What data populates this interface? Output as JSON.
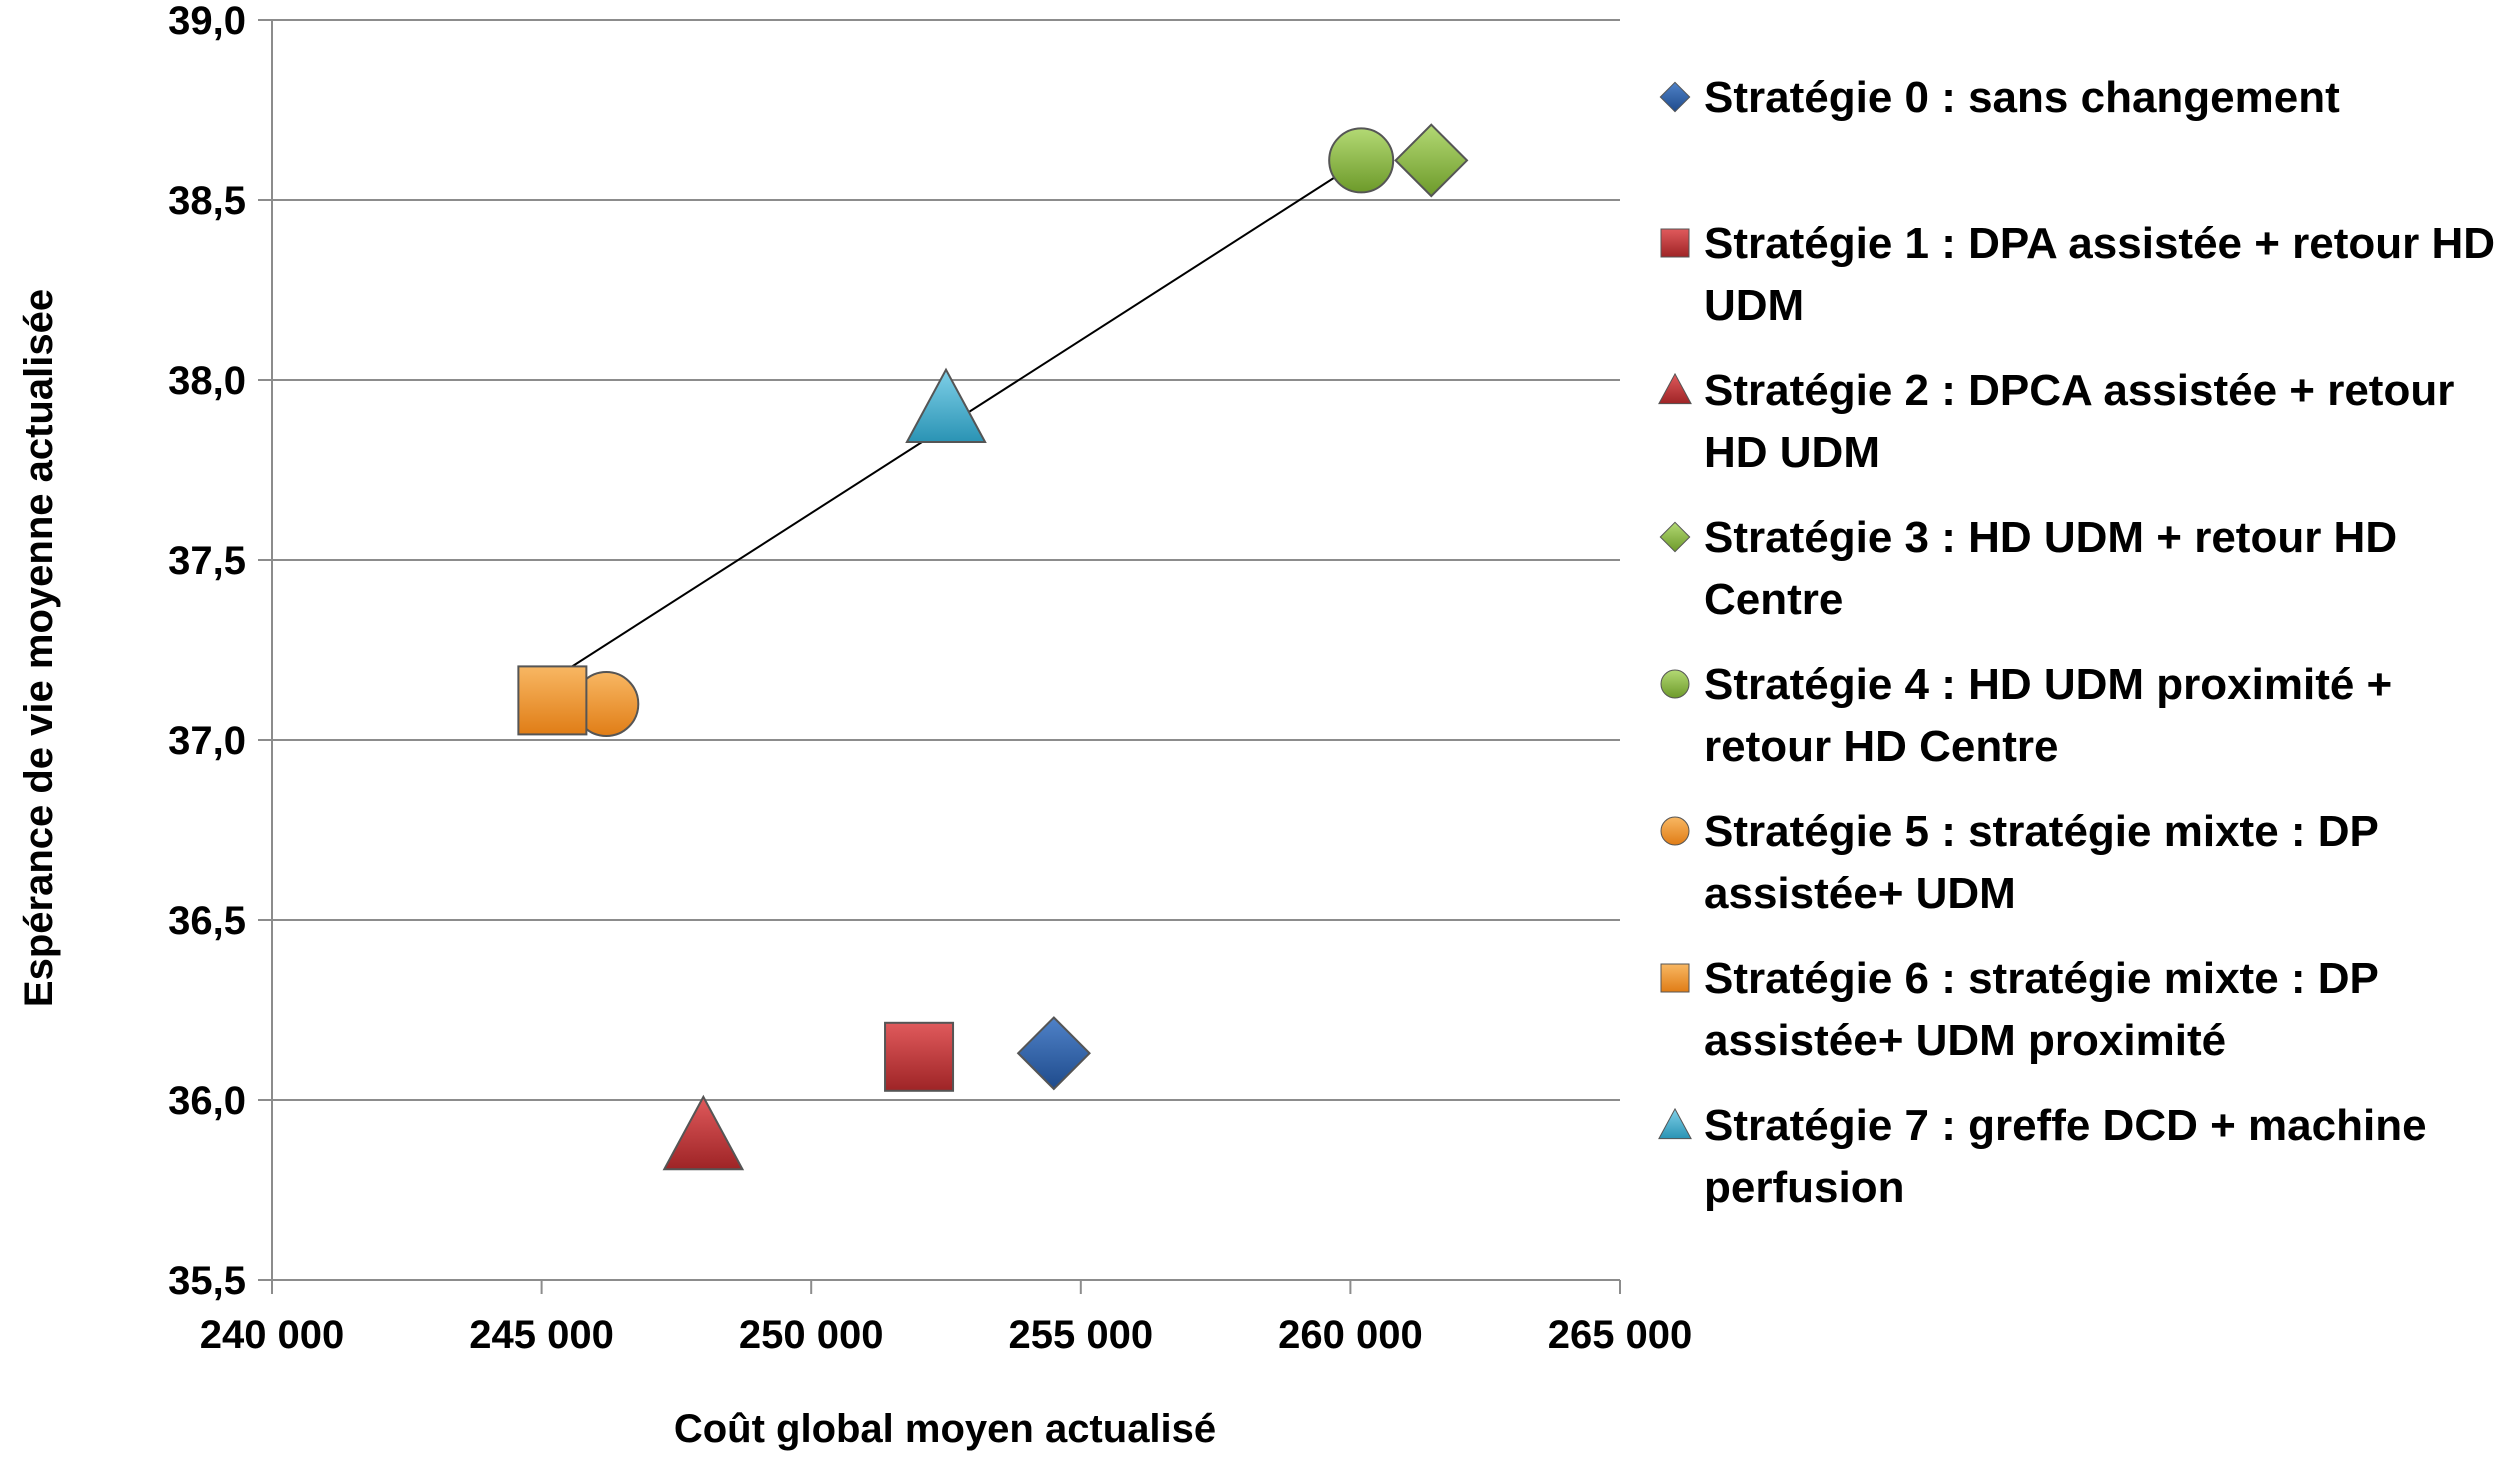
{
  "chart_data": {
    "type": "scatter",
    "title": "",
    "xlabel": "Coût global moyen actualisé",
    "ylabel": "Espérance de vie moyenne actualisée",
    "xlim": [
      240000,
      265000
    ],
    "ylim": [
      35.5,
      39.0
    ],
    "x_ticks": [
      240000,
      245000,
      250000,
      255000,
      260000,
      265000
    ],
    "x_tick_labels": [
      "240 000",
      "245 000",
      "250 000",
      "255 000",
      "260 000",
      "265 000"
    ],
    "y_ticks": [
      35.5,
      36.0,
      36.5,
      37.0,
      37.5,
      38.0,
      38.5,
      39.0
    ],
    "y_tick_labels": [
      "35,5",
      "36,0",
      "36,5",
      "37,0",
      "37,5",
      "38,0",
      "38,5",
      "39,0"
    ],
    "grid": "horizontal",
    "legend_position": "right",
    "series": [
      {
        "name": "Stratégie 0 : sans changement",
        "marker": "diamond",
        "color": "#2f5fa6",
        "x": 254500,
        "y": 36.13,
        "legend_lines": [
          "Stratégie 0 : sans changement"
        ]
      },
      {
        "name": "Stratégie 1 : DPA assistée + retour HD UDM",
        "marker": "square",
        "color": "#c0393b",
        "x": 252000,
        "y": 36.12,
        "legend_lines": [
          "Stratégie 1 : DPA assistée + retour HD",
          "UDM"
        ]
      },
      {
        "name": "Stratégie 2 : DPCA assistée + retour HD UDM",
        "marker": "triangle",
        "color": "#c0393b",
        "x": 248000,
        "y": 35.9,
        "legend_lines": [
          "Stratégie 2 : DPCA assistée + retour",
          "HD UDM"
        ]
      },
      {
        "name": "Stratégie 3 : HD UDM + retour HD Centre",
        "marker": "diamond",
        "color": "#8dbb3f",
        "x": 261500,
        "y": 38.61,
        "legend_lines": [
          "Stratégie 3 : HD UDM + retour HD",
          "Centre"
        ]
      },
      {
        "name": "Stratégie 4 :  HD UDM proximité + retour HD Centre",
        "marker": "circle",
        "color": "#8dbb3f",
        "x": 260200,
        "y": 38.61,
        "legend_lines": [
          "Stratégie 4 :  HD UDM proximité +",
          "retour HD Centre"
        ]
      },
      {
        "name": "Stratégie 5 : stratégie mixte :  DP assistée+ UDM",
        "marker": "circle",
        "color": "#f0962a",
        "x": 246200,
        "y": 37.1,
        "legend_lines": [
          "Stratégie 5 : stratégie mixte :  DP",
          "assistée+ UDM"
        ]
      },
      {
        "name": "Stratégie 6 : stratégie mixte :  DP assistée+ UDM proximité",
        "marker": "square",
        "color": "#f0962a",
        "x": 245200,
        "y": 37.11,
        "legend_lines": [
          "Stratégie 6 : stratégie mixte :  DP",
          "assistée+ UDM proximité"
        ]
      },
      {
        "name": "Stratégie 7 : greffe DCD +  machine perfusion",
        "marker": "triangle",
        "color": "#3fb0cf",
        "x": 252500,
        "y": 37.92,
        "legend_lines": [
          "Stratégie 7 : greffe DCD +  machine",
          "perfusion"
        ]
      }
    ],
    "trendline": {
      "x": [
        245000,
        260200
      ],
      "y": [
        37.15,
        38.61
      ],
      "color": "#000000"
    }
  }
}
